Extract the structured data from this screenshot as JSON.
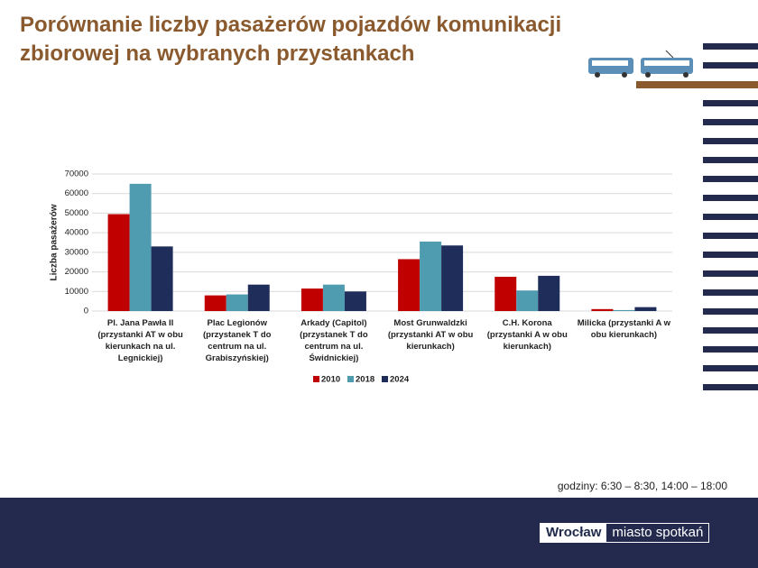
{
  "slide": {
    "title": "Porównanie liczby pasażerów pojazdów komunikacji zbiorowej na wybranych przystankach",
    "note": "godziny: 6:30 – 8:30, 14:00 – 18:00",
    "logo": [
      "Wrocław",
      "miasto spotkań"
    ]
  },
  "chart_data": {
    "type": "bar",
    "y_label": "Liczba pasażerów",
    "categories": [
      "Pl. Jana Pawła II (przystanki AT w obu kierunkach na ul. Legnickiej)",
      "Plac Legionów (przystanek T do centrum na ul. Grabiszyńskiej)",
      "Arkady (Capitol) (przystanek T do centrum na ul. Świdnickiej)",
      "Most Grunwaldzki (przystanki AT w obu kierunkach)",
      "C.H. Korona (przystanki A w obu kierunkach)",
      "Milicka (przystanki A w obu kierunkach)"
    ],
    "series": [
      {
        "name": "2010",
        "color": "#c00000",
        "values": [
          49500,
          8000,
          11500,
          26500,
          17500,
          1000
        ]
      },
      {
        "name": "2018",
        "color": "#4f9bb0",
        "values": [
          65000,
          8500,
          13500,
          35500,
          10500,
          500
        ]
      },
      {
        "name": "2024",
        "color": "#1f2d5a",
        "values": [
          33000,
          13500,
          10000,
          33500,
          18000,
          2000
        ]
      }
    ],
    "ylim": [
      0,
      70000
    ],
    "yticks": [
      0,
      10000,
      20000,
      30000,
      40000,
      50000,
      60000,
      70000
    ],
    "grid": true,
    "legend": "bottom"
  }
}
